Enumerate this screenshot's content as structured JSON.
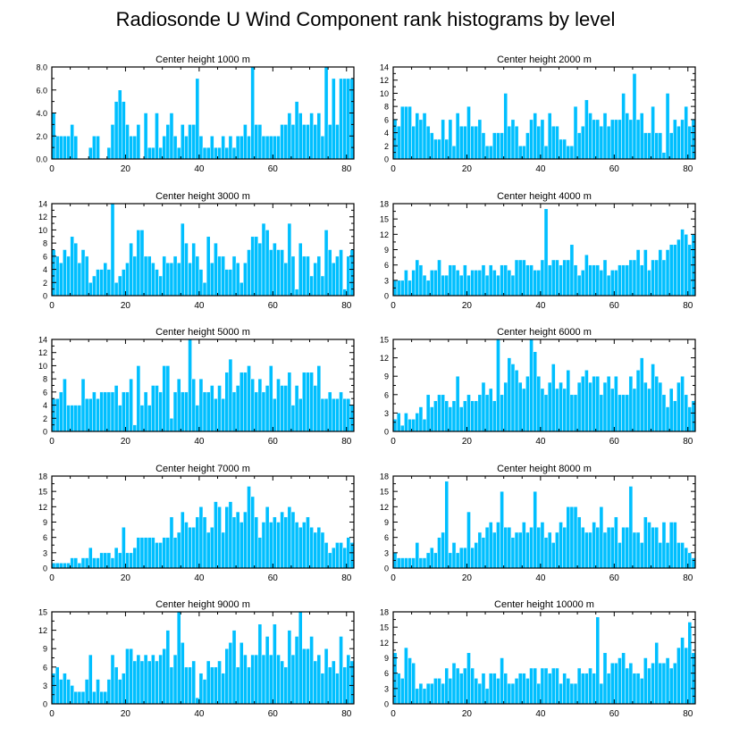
{
  "title": "Radiosonde U Wind Component rank histograms by level",
  "colors": {
    "bar": "#00bfff",
    "bar_edge": "#ffffff",
    "axis": "#000000"
  },
  "chart_data": [
    {
      "type": "bar",
      "title": "Center height 1000 m",
      "xlim": [
        0,
        82
      ],
      "ylim": [
        0,
        8
      ],
      "xticks": [
        0,
        20,
        40,
        60,
        80
      ],
      "xticklabels": [
        "0",
        "20",
        "40",
        "60",
        "80"
      ],
      "yticks": [
        0,
        2,
        4,
        6,
        8
      ],
      "yticklabels": [
        "0.0",
        "2.0",
        "4.0",
        "6.0",
        "8.0"
      ],
      "values": [
        4,
        2,
        2,
        2,
        2,
        3,
        2,
        0,
        0,
        0,
        1,
        2,
        2,
        0,
        0,
        1,
        3,
        5,
        6,
        5,
        3,
        2,
        2,
        3,
        0,
        4,
        1,
        1,
        4,
        1,
        2,
        3,
        4,
        2,
        1,
        3,
        2,
        3,
        3,
        7,
        2,
        1,
        1,
        2,
        1,
        1,
        2,
        1,
        2,
        1,
        2,
        2,
        3,
        2,
        8,
        3,
        3,
        2,
        2,
        2,
        2,
        2,
        3,
        3,
        4,
        3,
        5,
        4,
        3,
        3,
        4,
        3,
        4,
        2,
        8,
        3,
        7,
        3,
        7,
        7,
        7,
        7
      ]
    },
    {
      "type": "bar",
      "title": "Center height 2000 m",
      "xlim": [
        0,
        82
      ],
      "ylim": [
        0,
        14
      ],
      "xticks": [
        0,
        20,
        40,
        60,
        80
      ],
      "xticklabels": [
        "0",
        "20",
        "40",
        "60",
        "80"
      ],
      "yticks": [
        0,
        2,
        4,
        6,
        8,
        10,
        12,
        14
      ],
      "yticklabels": [
        "0",
        "2",
        "4",
        "6",
        "8",
        "10",
        "12",
        "14"
      ],
      "values": [
        6,
        5,
        8,
        8,
        8,
        5,
        7,
        6,
        7,
        5,
        4,
        3,
        3,
        6,
        3,
        6,
        2,
        7,
        5,
        5,
        8,
        5,
        5,
        6,
        4,
        2,
        2,
        4,
        4,
        4,
        10,
        5,
        6,
        5,
        2,
        2,
        4,
        6,
        7,
        5,
        6,
        2,
        7,
        5,
        5,
        3,
        3,
        2,
        2,
        8,
        4,
        5,
        9,
        7,
        6,
        6,
        5,
        7,
        5,
        6,
        6,
        6,
        10,
        7,
        6,
        13,
        6,
        7,
        4,
        4,
        8,
        4,
        4,
        1,
        10,
        4,
        6,
        5,
        6,
        8,
        5,
        6
      ]
    },
    {
      "type": "bar",
      "title": "Center height 3000 m",
      "xlim": [
        0,
        82
      ],
      "ylim": [
        0,
        14
      ],
      "xticks": [
        0,
        20,
        40,
        60,
        80
      ],
      "xticklabels": [
        "0",
        "20",
        "40",
        "60",
        "80"
      ],
      "yticks": [
        0,
        2,
        4,
        6,
        8,
        10,
        12,
        14
      ],
      "yticklabels": [
        "0",
        "2",
        "4",
        "6",
        "8",
        "10",
        "12",
        "14"
      ],
      "values": [
        7,
        6,
        5,
        7,
        6,
        9,
        8,
        5,
        7,
        6,
        2,
        3,
        4,
        4,
        5,
        4,
        14,
        2,
        3,
        4,
        5,
        8,
        6,
        10,
        10,
        6,
        6,
        5,
        4,
        3,
        6,
        5,
        5,
        6,
        5,
        11,
        8,
        5,
        8,
        6,
        4,
        2,
        9,
        5,
        8,
        6,
        6,
        4,
        4,
        6,
        5,
        2,
        5,
        7,
        9,
        9,
        8,
        11,
        10,
        7,
        8,
        7,
        7,
        5,
        11,
        6,
        1,
        8,
        6,
        6,
        3,
        5,
        6,
        3,
        10,
        7,
        5,
        6,
        7,
        1,
        6,
        7
      ]
    },
    {
      "type": "bar",
      "title": "Center height 4000 m",
      "xlim": [
        0,
        82
      ],
      "ylim": [
        0,
        18
      ],
      "xticks": [
        0,
        20,
        40,
        60,
        80
      ],
      "xticklabels": [
        "0",
        "20",
        "40",
        "60",
        "80"
      ],
      "yticks": [
        0,
        3,
        6,
        9,
        12,
        15,
        18
      ],
      "yticklabels": [
        "0",
        "3",
        "6",
        "9",
        "12",
        "15",
        "18"
      ],
      "values": [
        3,
        3,
        3,
        5,
        3,
        5,
        7,
        6,
        4,
        3,
        5,
        5,
        7,
        4,
        4,
        6,
        6,
        5,
        4,
        6,
        4,
        5,
        5,
        5,
        6,
        4,
        6,
        5,
        4,
        6,
        6,
        5,
        4,
        7,
        7,
        7,
        6,
        6,
        5,
        5,
        7,
        17,
        6,
        7,
        7,
        6,
        7,
        7,
        10,
        6,
        4,
        5,
        8,
        6,
        6,
        6,
        5,
        7,
        4,
        5,
        5,
        6,
        6,
        6,
        7,
        7,
        9,
        6,
        9,
        5,
        7,
        7,
        9,
        7,
        9,
        10,
        10,
        11,
        13,
        12,
        10,
        12
      ]
    },
    {
      "type": "bar",
      "title": "Center height 5000 m",
      "xlim": [
        0,
        82
      ],
      "ylim": [
        0,
        14
      ],
      "xticks": [
        0,
        20,
        40,
        60,
        80
      ],
      "xticklabels": [
        "0",
        "20",
        "40",
        "60",
        "80"
      ],
      "yticks": [
        0,
        2,
        4,
        6,
        8,
        10,
        12,
        14
      ],
      "yticklabels": [
        "0",
        "2",
        "4",
        "6",
        "8",
        "10",
        "12",
        "14"
      ],
      "values": [
        5,
        5,
        6,
        8,
        4,
        4,
        4,
        4,
        8,
        5,
        5,
        6,
        5,
        6,
        6,
        6,
        6,
        7,
        4,
        6,
        6,
        8,
        1,
        10,
        4,
        6,
        4,
        7,
        7,
        6,
        10,
        10,
        2,
        6,
        8,
        6,
        6,
        14,
        8,
        4,
        8,
        6,
        6,
        7,
        5,
        7,
        5,
        9,
        11,
        6,
        7,
        9,
        9,
        10,
        8,
        6,
        8,
        6,
        7,
        10,
        5,
        8,
        7,
        7,
        9,
        4,
        7,
        5,
        9,
        9,
        9,
        7,
        10,
        5,
        5,
        6,
        5,
        5,
        6,
        5,
        5,
        4
      ]
    },
    {
      "type": "bar",
      "title": "Center height 6000 m",
      "xlim": [
        0,
        82
      ],
      "ylim": [
        0,
        15
      ],
      "xticks": [
        0,
        20,
        40,
        60,
        80
      ],
      "xticklabels": [
        "0",
        "20",
        "40",
        "60",
        "80"
      ],
      "yticks": [
        0,
        3,
        6,
        9,
        12,
        15
      ],
      "yticklabels": [
        "0",
        "3",
        "6",
        "9",
        "12",
        "15"
      ],
      "values": [
        2,
        3,
        1,
        3,
        2,
        2,
        3,
        4,
        2,
        6,
        4,
        5,
        6,
        6,
        5,
        4,
        5,
        9,
        4,
        5,
        6,
        5,
        5,
        6,
        8,
        6,
        7,
        5,
        15,
        6,
        8,
        12,
        11,
        10,
        8,
        7,
        9,
        15,
        13,
        9,
        7,
        6,
        8,
        11,
        7,
        8,
        7,
        10,
        6,
        6,
        8,
        9,
        10,
        8,
        9,
        9,
        6,
        8,
        9,
        7,
        9,
        6,
        6,
        6,
        9,
        7,
        10,
        12,
        8,
        7,
        11,
        9,
        8,
        6,
        4,
        7,
        5,
        8,
        9,
        6,
        4,
        5
      ]
    },
    {
      "type": "bar",
      "title": "Center height 7000 m",
      "xlim": [
        0,
        82
      ],
      "ylim": [
        0,
        18
      ],
      "xticks": [
        0,
        20,
        40,
        60,
        80
      ],
      "xticklabels": [
        "0",
        "20",
        "40",
        "60",
        "80"
      ],
      "yticks": [
        0,
        3,
        6,
        9,
        12,
        15,
        18
      ],
      "yticklabels": [
        "0",
        "3",
        "6",
        "9",
        "12",
        "15",
        "18"
      ],
      "values": [
        1,
        1,
        1,
        1,
        1,
        2,
        2,
        1,
        2,
        2,
        4,
        2,
        2,
        3,
        3,
        3,
        2,
        4,
        3,
        8,
        3,
        3,
        4,
        6,
        6,
        6,
        6,
        6,
        5,
        5,
        6,
        6,
        10,
        6,
        7,
        11,
        9,
        8,
        8,
        10,
        12,
        10,
        7,
        8,
        13,
        12,
        7,
        12,
        13,
        10,
        11,
        9,
        11,
        16,
        14,
        10,
        6,
        9,
        12,
        9,
        10,
        9,
        11,
        10,
        12,
        11,
        9,
        8,
        9,
        10,
        8,
        7,
        8,
        7,
        5,
        3,
        4,
        5,
        5,
        4,
        6,
        5
      ]
    },
    {
      "type": "bar",
      "title": "Center height 8000 m",
      "xlim": [
        0,
        82
      ],
      "ylim": [
        0,
        18
      ],
      "xticks": [
        0,
        20,
        40,
        60,
        80
      ],
      "xticklabels": [
        "0",
        "20",
        "40",
        "60",
        "80"
      ],
      "yticks": [
        0,
        3,
        6,
        9,
        12,
        15,
        18
      ],
      "yticklabels": [
        "0",
        "3",
        "6",
        "9",
        "12",
        "15",
        "18"
      ],
      "values": [
        3,
        2,
        2,
        2,
        2,
        2,
        5,
        2,
        2,
        3,
        4,
        3,
        6,
        7,
        17,
        3,
        5,
        3,
        4,
        4,
        11,
        4,
        5,
        7,
        6,
        8,
        9,
        7,
        9,
        15,
        8,
        8,
        6,
        7,
        7,
        9,
        7,
        8,
        15,
        8,
        9,
        6,
        7,
        5,
        7,
        9,
        8,
        12,
        12,
        12,
        10,
        8,
        7,
        7,
        9,
        8,
        12,
        7,
        8,
        8,
        10,
        5,
        8,
        8,
        16,
        7,
        7,
        5,
        10,
        9,
        8,
        8,
        5,
        9,
        5,
        9,
        9,
        5,
        5,
        4,
        3,
        2
      ]
    },
    {
      "type": "bar",
      "title": "Center height 9000 m",
      "xlim": [
        0,
        82
      ],
      "ylim": [
        0,
        15
      ],
      "xticks": [
        0,
        20,
        40,
        60,
        80
      ],
      "xticklabels": [
        "0",
        "20",
        "40",
        "60",
        "80"
      ],
      "yticks": [
        0,
        3,
        6,
        9,
        12,
        15
      ],
      "yticklabels": [
        "0",
        "3",
        "6",
        "9",
        "12",
        "15"
      ],
      "values": [
        5,
        6,
        4,
        5,
        4,
        3,
        2,
        2,
        2,
        4,
        8,
        2,
        4,
        2,
        2,
        4,
        8,
        6,
        4,
        5,
        9,
        9,
        7,
        8,
        7,
        8,
        7,
        8,
        7,
        8,
        9,
        12,
        6,
        8,
        15,
        10,
        6,
        6,
        7,
        1,
        5,
        4,
        7,
        6,
        6,
        7,
        5,
        9,
        10,
        12,
        6,
        10,
        8,
        6,
        8,
        8,
        13,
        8,
        11,
        8,
        13,
        8,
        7,
        6,
        12,
        8,
        11,
        15,
        9,
        9,
        11,
        7,
        8,
        5,
        9,
        6,
        7,
        5,
        11,
        6,
        8,
        7
      ]
    },
    {
      "type": "bar",
      "title": "Center height 10000 m",
      "xlim": [
        0,
        82
      ],
      "ylim": [
        0,
        18
      ],
      "xticks": [
        0,
        20,
        40,
        60,
        80
      ],
      "xticklabels": [
        "0",
        "20",
        "40",
        "60",
        "80"
      ],
      "yticks": [
        0,
        3,
        6,
        9,
        12,
        15,
        18
      ],
      "yticklabels": [
        "0",
        "3",
        "6",
        "9",
        "12",
        "15",
        "18"
      ],
      "values": [
        10,
        6,
        5,
        11,
        9,
        8,
        3,
        4,
        3,
        4,
        4,
        5,
        5,
        4,
        7,
        5,
        8,
        7,
        6,
        7,
        10,
        7,
        5,
        4,
        6,
        3,
        6,
        6,
        5,
        9,
        6,
        4,
        4,
        5,
        6,
        6,
        5,
        7,
        7,
        4,
        7,
        7,
        6,
        7,
        7,
        4,
        6,
        5,
        4,
        4,
        7,
        6,
        6,
        7,
        6,
        17,
        4,
        10,
        6,
        8,
        8,
        9,
        10,
        7,
        8,
        6,
        6,
        5,
        9,
        7,
        8,
        12,
        8,
        8,
        9,
        7,
        8,
        11,
        13,
        11,
        16,
        10
      ]
    }
  ]
}
